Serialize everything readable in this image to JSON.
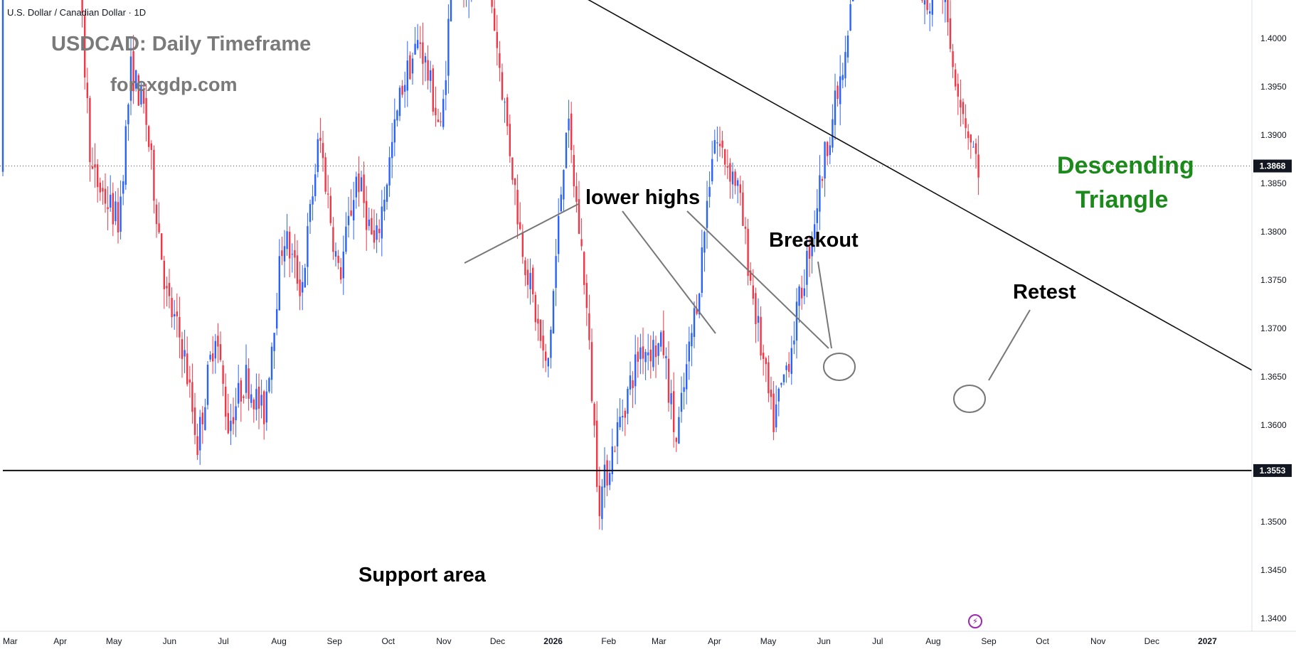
{
  "header": {
    "symbol": "U.S. Dollar / Canadian Dollar · 1D",
    "title": "USDCAD: Daily Timeframe",
    "watermark": "forexgdp.com"
  },
  "annotations": {
    "pattern_line1": "Descending",
    "pattern_line2": "Triangle",
    "lower_highs": "lower highs",
    "breakout": "Breakout",
    "retest": "Retest",
    "support": "Support area"
  },
  "colors": {
    "up": "#2962ff",
    "down": "#f23645",
    "pattern": "#1b8a1b",
    "grid": "#f0f3fa"
  },
  "chart_data": {
    "type": "candlestick",
    "symbol": "USDCAD",
    "timeframe": "1D",
    "ylim": [
      1.337,
      1.466
    ],
    "y_ticks": [
      "1.3400",
      "1.3450",
      "1.3500",
      "1.3550",
      "1.3600",
      "1.3650",
      "1.3700",
      "1.3750",
      "1.3800",
      "1.3850",
      "1.3900",
      "1.3950",
      "1.4000",
      "1.4050",
      "1.4100",
      "1.4150",
      "1.4200",
      "1.4250",
      "1.4300",
      "1.4350",
      "1.4400",
      "1.4450",
      "1.4500",
      "1.4550",
      "1.4600",
      "1.4650"
    ],
    "x_ticks": [
      "Mar",
      "Apr",
      "May",
      "Jun",
      "Jul",
      "Aug",
      "Sep",
      "Oct",
      "Nov",
      "Dec",
      "2026",
      "Feb",
      "Mar",
      "Apr",
      "May",
      "Jun",
      "Jul",
      "Aug",
      "Sep",
      "Oct",
      "Nov",
      "Dec",
      "2027"
    ],
    "current_price": "1.3868",
    "support_price": "1.3553",
    "price_path": [
      [
        "2025-03-01",
        1.445
      ],
      [
        "2025-03-10",
        1.44
      ],
      [
        "2025-03-25",
        1.432
      ],
      [
        "2025-04-01",
        1.44
      ],
      [
        "2025-04-08",
        1.42
      ],
      [
        "2025-04-20",
        1.386
      ],
      [
        "2025-05-05",
        1.381
      ],
      [
        "2025-05-12",
        1.397
      ],
      [
        "2025-05-20",
        1.392
      ],
      [
        "2025-06-01",
        1.373
      ],
      [
        "2025-06-10",
        1.368
      ],
      [
        "2025-06-18",
        1.358
      ],
      [
        "2025-06-28",
        1.37
      ],
      [
        "2025-07-05",
        1.36
      ],
      [
        "2025-07-15",
        1.365
      ],
      [
        "2025-07-25",
        1.361
      ],
      [
        "2025-08-05",
        1.38
      ],
      [
        "2025-08-15",
        1.374
      ],
      [
        "2025-08-25",
        1.39
      ],
      [
        "2025-09-05",
        1.375
      ],
      [
        "2025-09-15",
        1.386
      ],
      [
        "2025-09-25",
        1.378
      ],
      [
        "2025-10-10",
        1.395
      ],
      [
        "2025-10-20",
        1.4
      ],
      [
        "2025-11-01",
        1.39
      ],
      [
        "2025-11-08",
        1.41
      ],
      [
        "2025-11-15",
        1.403
      ],
      [
        "2025-11-25",
        1.41
      ],
      [
        "2025-12-05",
        1.395
      ],
      [
        "2025-12-15",
        1.38
      ],
      [
        "2025-12-30",
        1.365
      ],
      [
        "2026-01-10",
        1.392
      ],
      [
        "2026-01-20",
        1.375
      ],
      [
        "2026-01-28",
        1.352
      ],
      [
        "2026-02-08",
        1.36
      ],
      [
        "2026-02-20",
        1.368
      ],
      [
        "2026-03-05",
        1.368
      ],
      [
        "2026-03-12",
        1.358
      ],
      [
        "2026-03-25",
        1.375
      ],
      [
        "2026-04-02",
        1.39
      ],
      [
        "2026-04-15",
        1.385
      ],
      [
        "2026-04-25",
        1.372
      ],
      [
        "2026-05-05",
        1.36
      ],
      [
        "2026-05-15",
        1.368
      ],
      [
        "2026-05-25",
        1.378
      ],
      [
        "2026-06-05",
        1.39
      ],
      [
        "2026-06-15",
        1.398
      ],
      [
        "2026-06-22",
        1.414
      ],
      [
        "2026-06-30",
        1.421
      ],
      [
        "2026-07-10",
        1.42
      ],
      [
        "2026-07-20",
        1.41
      ],
      [
        "2026-07-30",
        1.402
      ],
      [
        "2026-08-05",
        1.409
      ],
      [
        "2026-08-12",
        1.399
      ],
      [
        "2026-08-20",
        1.392
      ],
      [
        "2026-08-27",
        1.3868
      ]
    ],
    "trendlines": [
      {
        "name": "descending resistance",
        "from": [
          "2025-04-30",
          1.4315
        ],
        "to": [
          "2027-01-15",
          1.3668
        ]
      },
      {
        "name": "support",
        "from": [
          "2025-02-28",
          1.3553
        ],
        "to": [
          "2027-01-15",
          1.3553
        ]
      }
    ],
    "grid": false,
    "legend": "none"
  }
}
